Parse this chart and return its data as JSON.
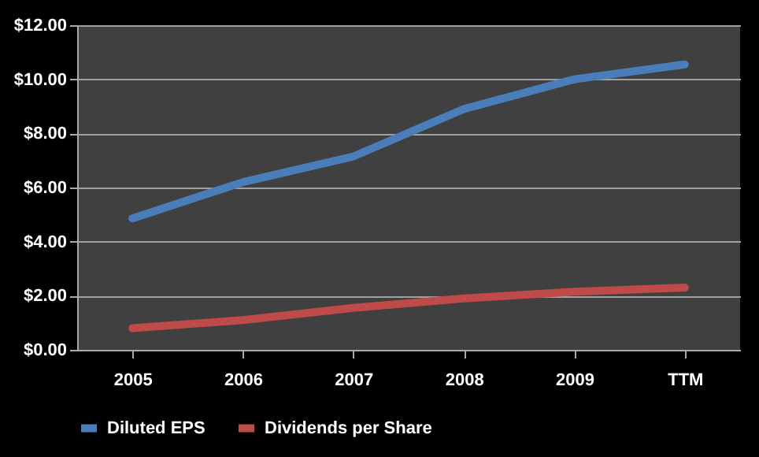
{
  "chart_data": {
    "type": "line",
    "categories": [
      "2005",
      "2006",
      "2007",
      "2008",
      "2009",
      "TTM"
    ],
    "series": [
      {
        "name": "Diluted EPS",
        "color": "#4a7ebb",
        "values": [
          4.86,
          6.2,
          7.15,
          8.9,
          10.0,
          10.55
        ]
      },
      {
        "name": "Dividends per Share",
        "color": "#be4b48",
        "values": [
          0.8,
          1.1,
          1.55,
          1.9,
          2.15,
          2.3
        ]
      }
    ],
    "ylim": [
      0,
      12
    ],
    "yticks": [
      {
        "value": 0,
        "label": "$0.00"
      },
      {
        "value": 2,
        "label": "$2.00"
      },
      {
        "value": 4,
        "label": "$4.00"
      },
      {
        "value": 6,
        "label": "$6.00"
      },
      {
        "value": 8,
        "label": "$8.00"
      },
      {
        "value": 10,
        "label": "$10.00"
      },
      {
        "value": 12,
        "label": "$12.00"
      }
    ],
    "grid": "y",
    "legend": "bottom",
    "marker": "none",
    "line_style": "solid"
  }
}
